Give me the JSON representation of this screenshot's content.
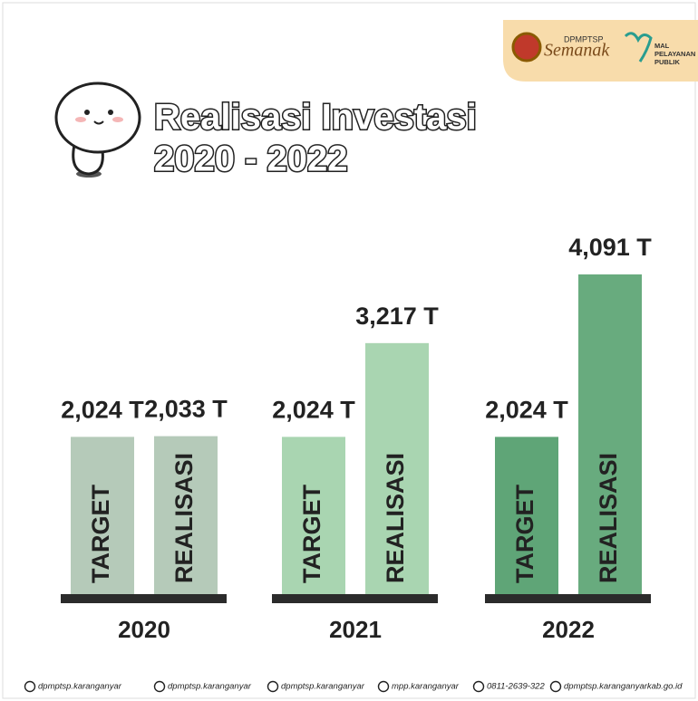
{
  "chart_data": {
    "type": "bar",
    "title": "Realisasi Investasi",
    "subtitle": "2020 - 2022",
    "categories": [
      "2020",
      "2021",
      "2022"
    ],
    "series": [
      {
        "name": "TARGET",
        "colors": [
          "#b5cab9",
          "#a9d5b1",
          "#5fa577"
        ],
        "values": [
          2.024,
          2.024,
          2.024
        ],
        "value_labels": [
          "2,024 T",
          "2,024 T",
          "2,024 T"
        ]
      },
      {
        "name": "REALISASI",
        "colors": [
          "#b5cab9",
          "#a9d5b1",
          "#68ab7e"
        ],
        "values": [
          2.033,
          3.217,
          4.091
        ],
        "value_labels": [
          "2,033 T",
          "3,217 T",
          "4,091 T"
        ]
      }
    ]
  },
  "logo": {
    "agency": "DPMPTSP",
    "brand": "Semanak",
    "mall": "MAL PELAYANAN PUBLIK"
  },
  "footer": [
    "dpmptsp.karanganyar",
    "dpmptsp.karanganyar",
    "dpmptsp.karanganyar",
    "mpp.karanganyar",
    "0811-2639-322",
    "dpmptsp.karanganyarkab.go.id"
  ]
}
